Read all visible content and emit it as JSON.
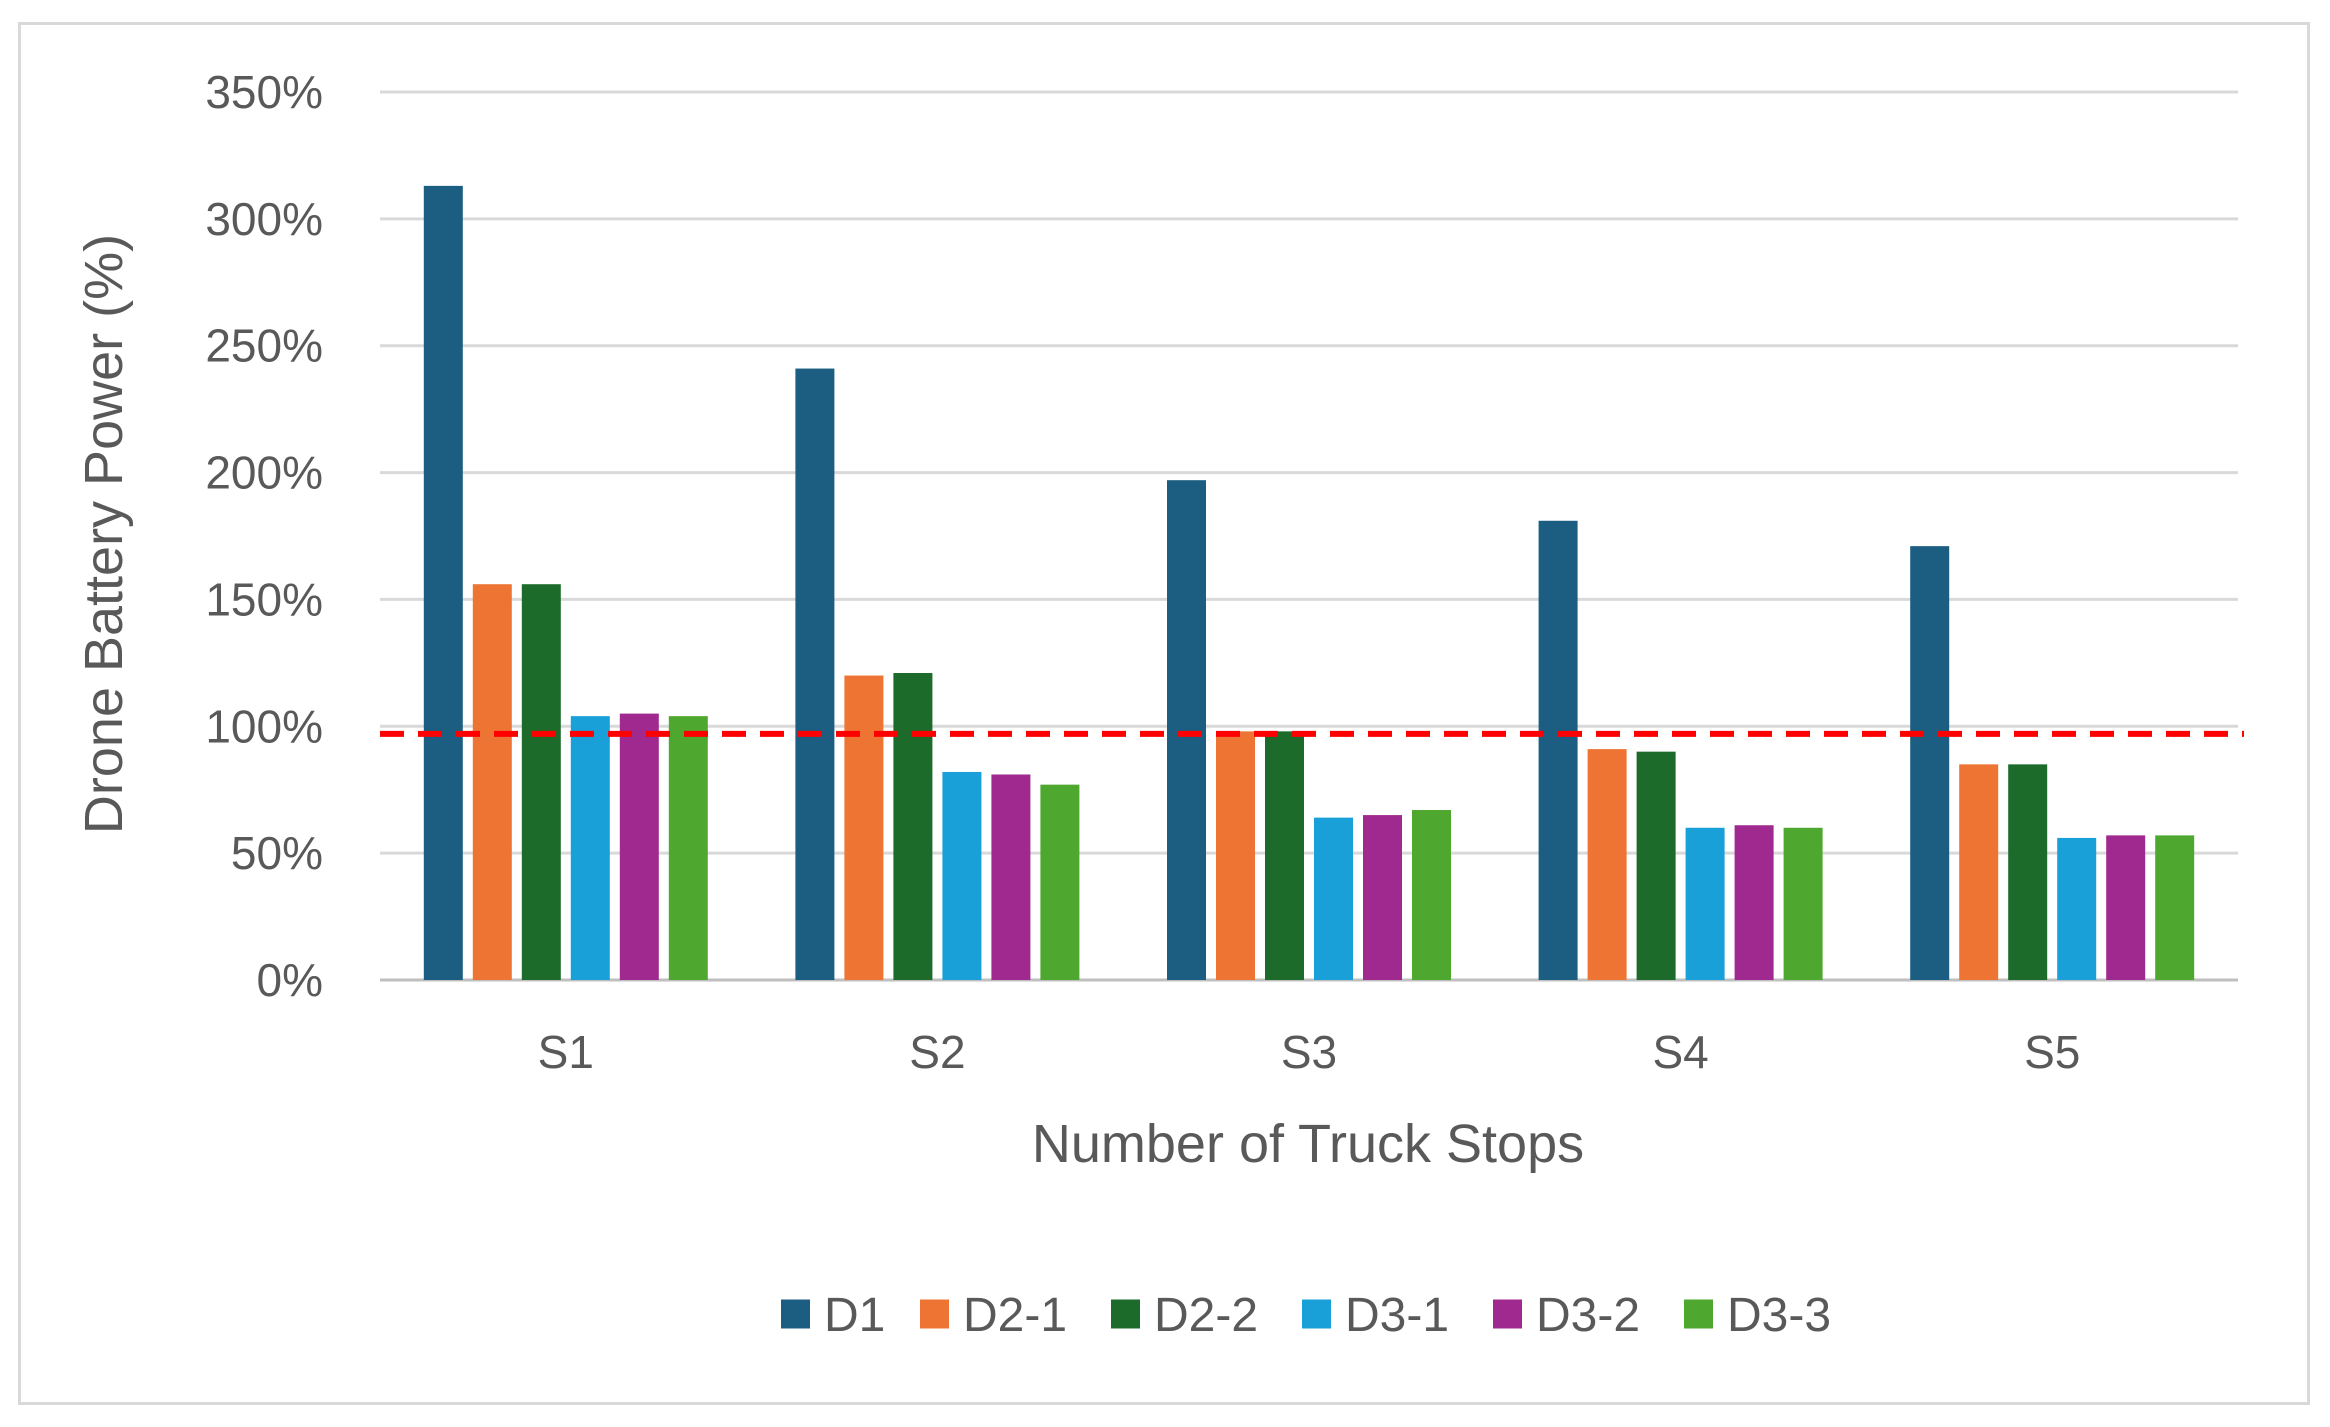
{
  "chart_data": {
    "type": "bar",
    "title": "",
    "xlabel": "Number of Truck Stops",
    "ylabel": "Drone Battery Power (%)",
    "categories": [
      "S1",
      "S2",
      "S3",
      "S4",
      "S5"
    ],
    "ylim": [
      0,
      350
    ],
    "yticks": [
      0,
      50,
      100,
      150,
      200,
      250,
      300,
      350
    ],
    "ytick_labels": [
      "0%",
      "50%",
      "100%",
      "150%",
      "200%",
      "250%",
      "300%",
      "350%"
    ],
    "grid": true,
    "legend_position": "bottom",
    "reference_line": {
      "value": 97,
      "style": "dashed",
      "color": "#ff0000"
    },
    "series": [
      {
        "name": "D1",
        "color": "#1b5e82",
        "values": [
          313,
          241,
          197,
          181,
          171
        ]
      },
      {
        "name": "D2-1",
        "color": "#ed7433",
        "values": [
          156,
          120,
          98,
          91,
          85
        ]
      },
      {
        "name": "D2-2",
        "color": "#1c6b2b",
        "values": [
          156,
          121,
          98,
          90,
          85
        ]
      },
      {
        "name": "D3-1",
        "color": "#19a0d8",
        "values": [
          104,
          82,
          64,
          60,
          56
        ]
      },
      {
        "name": "D3-2",
        "color": "#a0298f",
        "values": [
          105,
          81,
          65,
          61,
          57
        ]
      },
      {
        "name": "D3-3",
        "color": "#4ea82f",
        "values": [
          104,
          77,
          67,
          60,
          57
        ]
      }
    ]
  }
}
